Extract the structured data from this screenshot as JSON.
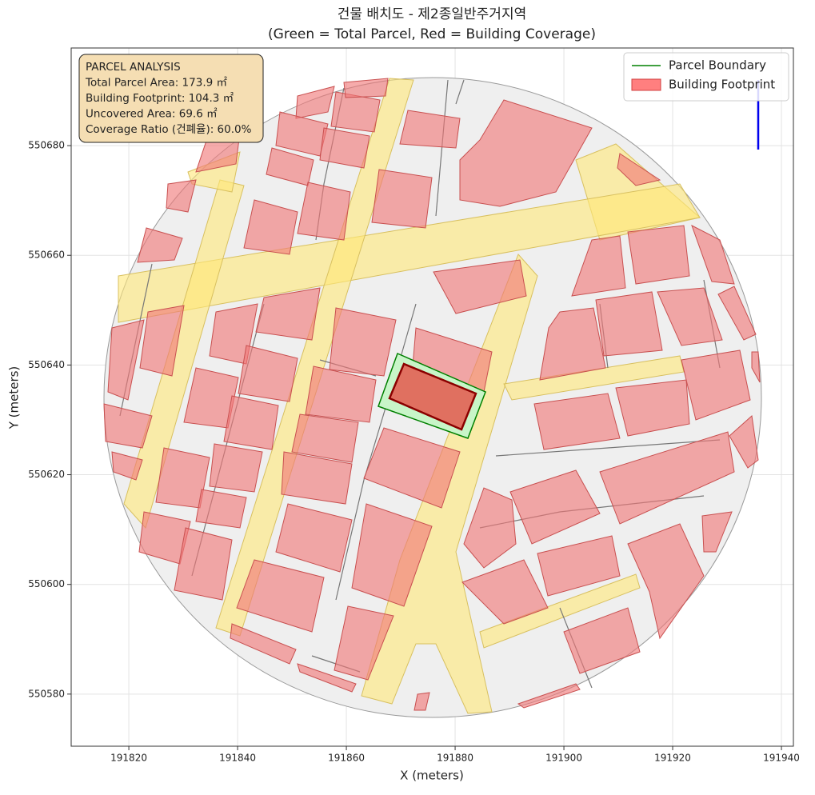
{
  "chart_data": {
    "type": "map",
    "title": [
      "건물 배치도 - 제2종일반주거지역",
      "(Green = Total Parcel, Red = Building Coverage)"
    ],
    "x_label": "X (meters)",
    "y_label": "Y (meters)",
    "xlim": [
      191809.4,
      191942.2
    ],
    "ylim": [
      550570.5,
      550697.8
    ],
    "xticks": [
      191820,
      191840,
      191860,
      191880,
      191900,
      191920,
      191940
    ],
    "yticks": [
      550580,
      550600,
      550620,
      550640,
      550660,
      550680
    ],
    "grid": true,
    "annotation": [
      "PARCEL ANALYSIS",
      "Total Parcel Area: 173.9 ㎡",
      "Building Footprint: 104.3 ㎡",
      "Uncovered Area: 69.6 ㎡",
      "Coverage Ratio (건폐율): 60.0%"
    ],
    "legend": {
      "position": "upper right",
      "items": [
        {
          "name": "Parcel Boundary",
          "color": "#008000"
        },
        {
          "name": "Building Footprint",
          "color": "#ff7f7f"
        }
      ]
    }
  }
}
